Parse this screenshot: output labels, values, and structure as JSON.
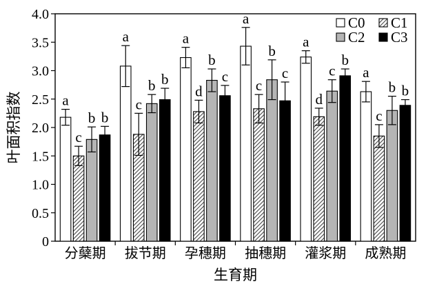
{
  "chart_data": {
    "type": "bar",
    "title": "",
    "xlabel": "生育期",
    "ylabel": "叶面积指数",
    "ylim": [
      0,
      4.0
    ],
    "yticks": [
      "0",
      "0.5",
      "1.0",
      "1.5",
      "2.0",
      "2.5",
      "3.0",
      "3.5",
      "4.0"
    ],
    "categories": [
      "分蘖期",
      "拔节期",
      "孕穗期",
      "抽穗期",
      "灌浆期",
      "成熟期"
    ],
    "legend_position": "top-right",
    "grid": false,
    "series": [
      {
        "name": "C0",
        "color": "#ffffff",
        "pattern": "solid-white",
        "values": [
          2.18,
          3.08,
          3.23,
          3.43,
          3.24,
          2.63
        ],
        "errors": [
          0.14,
          0.36,
          0.18,
          0.33,
          0.11,
          0.18
        ],
        "labels": [
          "a",
          "a",
          "a",
          "a",
          "a",
          "a"
        ]
      },
      {
        "name": "C1",
        "color": "#777777",
        "pattern": "diagonal-hatch",
        "values": [
          1.5,
          1.88,
          2.28,
          2.33,
          2.19,
          1.85
        ],
        "errors": [
          0.17,
          0.37,
          0.2,
          0.25,
          0.15,
          0.2
        ],
        "labels": [
          "c",
          "c",
          "d",
          "c",
          "d",
          "c"
        ]
      },
      {
        "name": "C2",
        "color": "#b5b5b5",
        "pattern": "solid-gray",
        "values": [
          1.79,
          2.42,
          2.83,
          2.84,
          2.64,
          2.3
        ],
        "errors": [
          0.22,
          0.16,
          0.2,
          0.35,
          0.2,
          0.25
        ],
        "labels": [
          "b",
          "b",
          "b",
          "b",
          "c",
          "b"
        ]
      },
      {
        "name": "C3",
        "color": "#000000",
        "pattern": "solid-black",
        "values": [
          1.87,
          2.49,
          2.56,
          2.47,
          2.91,
          2.39
        ],
        "errors": [
          0.15,
          0.2,
          0.18,
          0.33,
          0.12,
          0.1
        ],
        "labels": [
          "b",
          "b",
          "c",
          "c",
          "b",
          "b"
        ]
      }
    ]
  }
}
